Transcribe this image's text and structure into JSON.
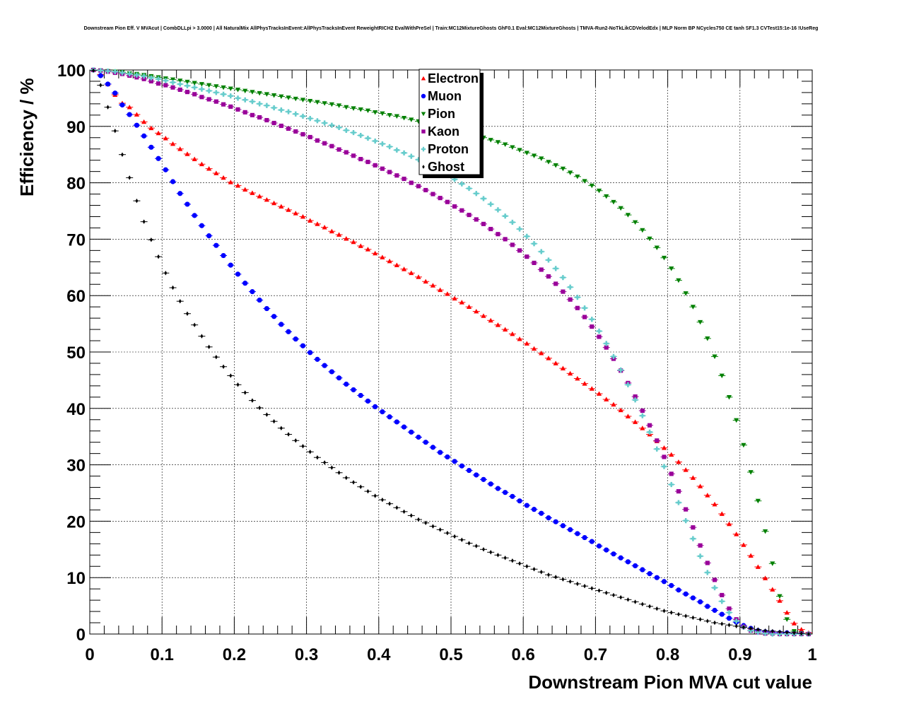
{
  "chart_data": {
    "type": "scatter",
    "title": "Downstream Pion Eff. V MVAcut | CombDLLpi > 3.0000 | All NaturalMix AllPhysTracksInEvent:AllPhysTracksInEvent ReweightRICH2 EvalWithPreSel | Train:MC12MixtureGhosts GhF0.1 Eval:MC12MixtureGhosts | TMVA-Run2-NoTkLikCDVelodEdx | MLP Norm BP NCycles750 CE tanh SF1.3 CVTest15:1e-16 !UseReg",
    "xlabel": "Downstream Pion MVA cut value",
    "ylabel": "Efficiency / %",
    "xlim": [
      0,
      1
    ],
    "ylim": [
      0,
      100
    ],
    "x_ticks": [
      "0",
      "0.1",
      "0.2",
      "0.3",
      "0.4",
      "0.5",
      "0.6",
      "0.7",
      "0.8",
      "0.9",
      "1"
    ],
    "y_ticks": [
      "0",
      "10",
      "20",
      "30",
      "40",
      "50",
      "60",
      "70",
      "80",
      "90",
      "100"
    ],
    "grid": true,
    "legend_position": "top-center",
    "x": [
      0.005,
      0.015,
      0.025,
      0.035,
      0.045,
      0.055,
      0.065,
      0.075,
      0.085,
      0.095,
      0.105,
      0.115,
      0.125,
      0.135,
      0.145,
      0.155,
      0.165,
      0.175,
      0.185,
      0.195,
      0.205,
      0.215,
      0.225,
      0.235,
      0.245,
      0.255,
      0.265,
      0.275,
      0.285,
      0.295,
      0.305,
      0.315,
      0.325,
      0.335,
      0.345,
      0.355,
      0.365,
      0.375,
      0.385,
      0.395,
      0.405,
      0.415,
      0.425,
      0.435,
      0.445,
      0.455,
      0.465,
      0.475,
      0.485,
      0.495,
      0.505,
      0.515,
      0.525,
      0.535,
      0.545,
      0.555,
      0.565,
      0.575,
      0.585,
      0.595,
      0.605,
      0.615,
      0.625,
      0.635,
      0.645,
      0.655,
      0.665,
      0.675,
      0.685,
      0.695,
      0.705,
      0.715,
      0.725,
      0.735,
      0.745,
      0.755,
      0.765,
      0.775,
      0.785,
      0.795,
      0.805,
      0.815,
      0.825,
      0.835,
      0.845,
      0.855,
      0.865,
      0.875,
      0.885,
      0.895,
      0.905,
      0.915,
      0.925,
      0.935,
      0.945,
      0.955,
      0.965,
      0.975,
      0.985,
      0.995
    ],
    "series": [
      {
        "name": "Electron",
        "color": "#ff0000",
        "marker": "triangle-up",
        "values": [
          100,
          99.2,
          97.5,
          95.6,
          94.1,
          93.4,
          92.1,
          90.8,
          89.7,
          88.8,
          87.9,
          86.9,
          86.0,
          85.1,
          84.2,
          83.3,
          82.5,
          81.7,
          80.9,
          80.1,
          79.5,
          78.8,
          78.2,
          77.6,
          77.0,
          76.4,
          75.8,
          75.2,
          74.6,
          74.0,
          73.3,
          72.7,
          72.1,
          71.4,
          70.8,
          70.1,
          69.5,
          68.8,
          68.2,
          67.5,
          66.8,
          66.1,
          65.4,
          64.7,
          64.0,
          63.3,
          62.5,
          61.8,
          61.0,
          60.3,
          59.5,
          58.8,
          58.0,
          57.2,
          56.4,
          55.6,
          54.8,
          54.0,
          53.2,
          52.3,
          51.5,
          50.6,
          49.8,
          48.9,
          48.0,
          47.1,
          46.2,
          45.3,
          44.4,
          43.5,
          42.6,
          41.6,
          40.7,
          39.7,
          38.6,
          37.6,
          36.5,
          35.4,
          34.2,
          33.0,
          31.8,
          30.5,
          29.1,
          27.7,
          26.2,
          24.6,
          23.0,
          21.3,
          19.5,
          17.7,
          15.8,
          13.9,
          11.9,
          9.9,
          7.9,
          5.9,
          3.8,
          1.9,
          0.8,
          0.2
        ]
      },
      {
        "name": "Muon",
        "color": "#0000ff",
        "marker": "circle",
        "values": [
          100,
          99.0,
          97.5,
          95.9,
          93.8,
          92.1,
          90.2,
          88.3,
          86.3,
          84.3,
          82.3,
          80.2,
          78.1,
          76.2,
          74.2,
          72.4,
          70.6,
          68.9,
          67.1,
          65.4,
          63.8,
          62.2,
          60.7,
          59.2,
          57.7,
          56.3,
          54.9,
          53.6,
          52.3,
          51.1,
          49.9,
          48.7,
          47.6,
          46.5,
          45.4,
          44.3,
          43.3,
          42.3,
          41.3,
          40.3,
          39.4,
          38.5,
          37.6,
          36.7,
          35.8,
          34.9,
          34.0,
          33.1,
          32.2,
          31.4,
          30.6,
          29.8,
          29.0,
          28.2,
          27.4,
          26.6,
          25.8,
          25.1,
          24.4,
          23.6,
          22.8,
          22.1,
          21.4,
          20.6,
          19.9,
          19.2,
          18.5,
          17.8,
          17.1,
          16.4,
          15.6,
          14.9,
          14.2,
          13.5,
          12.8,
          12.1,
          11.4,
          10.7,
          10.0,
          9.3,
          8.6,
          7.8,
          7.1,
          6.4,
          5.7,
          4.9,
          4.2,
          3.5,
          2.8,
          2.1,
          1.5,
          1.0,
          0.6,
          0.4,
          0.3,
          0.2,
          0.2,
          0.1,
          0.1,
          0.0
        ]
      },
      {
        "name": "Pion",
        "color": "#008000",
        "marker": "triangle-down",
        "values": [
          100,
          99.9,
          99.8,
          99.7,
          99.6,
          99.4,
          99.3,
          99.1,
          98.9,
          98.7,
          98.5,
          98.3,
          98.1,
          97.9,
          97.7,
          97.5,
          97.3,
          97.1,
          96.9,
          96.7,
          96.5,
          96.3,
          96.1,
          95.9,
          95.7,
          95.5,
          95.3,
          95.1,
          94.9,
          94.7,
          94.5,
          94.3,
          94.1,
          93.9,
          93.7,
          93.4,
          93.2,
          93.0,
          92.8,
          92.5,
          92.3,
          92.0,
          91.8,
          91.5,
          91.2,
          90.9,
          90.6,
          90.3,
          90.0,
          89.7,
          89.4,
          89.1,
          88.7,
          88.4,
          88.0,
          87.6,
          87.2,
          86.8,
          86.3,
          85.8,
          85.3,
          84.8,
          84.3,
          83.7,
          83.1,
          82.5,
          81.8,
          81.1,
          80.3,
          79.5,
          78.6,
          77.6,
          76.6,
          75.5,
          74.3,
          73.0,
          71.6,
          70.1,
          68.5,
          66.7,
          64.8,
          62.7,
          60.4,
          58.0,
          55.3,
          52.4,
          49.2,
          45.8,
          42.0,
          37.9,
          33.5,
          28.7,
          23.6,
          18.2,
          12.5,
          6.7,
          2.6,
          0.5,
          0.1,
          0.0
        ]
      },
      {
        "name": "Kaon",
        "color": "#990099",
        "marker": "square",
        "values": [
          100,
          99.9,
          99.7,
          99.5,
          99.3,
          99.0,
          98.7,
          98.4,
          98.0,
          97.6,
          97.3,
          96.9,
          96.5,
          96.1,
          95.7,
          95.2,
          94.8,
          94.4,
          93.9,
          93.5,
          93.0,
          92.5,
          92.0,
          91.6,
          91.1,
          90.6,
          90.1,
          89.6,
          89.1,
          88.6,
          88.1,
          87.5,
          87.0,
          86.5,
          85.9,
          85.4,
          84.8,
          84.2,
          83.7,
          83.1,
          82.5,
          81.9,
          81.3,
          80.7,
          80.0,
          79.4,
          78.7,
          78.0,
          77.3,
          76.6,
          75.8,
          75.1,
          74.3,
          73.5,
          72.7,
          71.8,
          70.9,
          70.0,
          69.0,
          68.0,
          66.9,
          65.8,
          64.6,
          63.4,
          62.1,
          60.7,
          59.3,
          57.8,
          56.2,
          54.5,
          52.7,
          50.8,
          48.8,
          46.7,
          44.5,
          42.1,
          39.6,
          37.0,
          34.3,
          31.4,
          28.4,
          25.3,
          22.1,
          18.9,
          15.7,
          12.6,
          9.6,
          6.9,
          4.5,
          2.6,
          1.3,
          0.6,
          0.3,
          0.1,
          0.1,
          0.0,
          0.0,
          0.0,
          0.0,
          0.0
        ]
      },
      {
        "name": "Proton",
        "color": "#66cccc",
        "marker": "cross",
        "values": [
          100,
          99.9,
          99.8,
          99.7,
          99.5,
          99.3,
          99.1,
          98.9,
          98.6,
          98.4,
          98.1,
          97.8,
          97.5,
          97.2,
          96.9,
          96.6,
          96.3,
          96.0,
          95.7,
          95.4,
          95.0,
          94.7,
          94.4,
          94.0,
          93.7,
          93.3,
          92.9,
          92.6,
          92.2,
          91.8,
          91.4,
          91.0,
          90.6,
          90.2,
          89.8,
          89.3,
          88.9,
          88.4,
          87.9,
          87.4,
          86.9,
          86.4,
          85.8,
          85.3,
          84.7,
          84.1,
          83.5,
          82.8,
          82.1,
          81.4,
          80.6,
          79.8,
          79.0,
          78.1,
          77.2,
          76.2,
          75.2,
          74.1,
          73.0,
          71.8,
          70.5,
          69.2,
          67.8,
          66.3,
          64.8,
          63.2,
          61.5,
          59.7,
          57.8,
          55.8,
          53.7,
          51.5,
          49.2,
          46.8,
          44.2,
          41.5,
          38.7,
          35.8,
          32.8,
          29.7,
          26.5,
          23.3,
          20.1,
          16.9,
          13.8,
          10.9,
          8.2,
          5.8,
          3.8,
          2.3,
          1.2,
          0.6,
          0.3,
          0.1,
          0.0,
          0.0,
          0.0,
          0.0,
          0.0,
          0.0
        ]
      },
      {
        "name": "Ghost",
        "color": "#000000",
        "marker": "diamond",
        "values": [
          99.9,
          97.3,
          93.4,
          89.2,
          85.0,
          80.9,
          76.8,
          73.1,
          69.9,
          66.9,
          64.0,
          61.4,
          59.0,
          56.8,
          54.8,
          52.8,
          50.9,
          49.1,
          47.4,
          45.8,
          44.2,
          42.8,
          41.4,
          40.1,
          38.9,
          37.7,
          36.5,
          35.4,
          34.3,
          33.3,
          32.3,
          31.3,
          30.4,
          29.5,
          28.6,
          27.7,
          26.9,
          26.1,
          25.3,
          24.5,
          23.8,
          23.1,
          22.4,
          21.7,
          21.0,
          20.3,
          19.7,
          19.1,
          18.5,
          17.9,
          17.3,
          16.7,
          16.1,
          15.6,
          15.0,
          14.5,
          14.0,
          13.5,
          13.0,
          12.5,
          12.0,
          11.5,
          11.0,
          10.5,
          10.1,
          9.7,
          9.3,
          8.9,
          8.5,
          8.1,
          7.7,
          7.3,
          6.9,
          6.5,
          6.1,
          5.7,
          5.3,
          4.9,
          4.5,
          4.1,
          3.8,
          3.5,
          3.2,
          2.9,
          2.6,
          2.3,
          2.0,
          1.8,
          1.6,
          1.4,
          1.2,
          1.0,
          0.8,
          0.6,
          0.5,
          0.4,
          0.3,
          0.2,
          0.1,
          0.0
        ]
      }
    ]
  }
}
